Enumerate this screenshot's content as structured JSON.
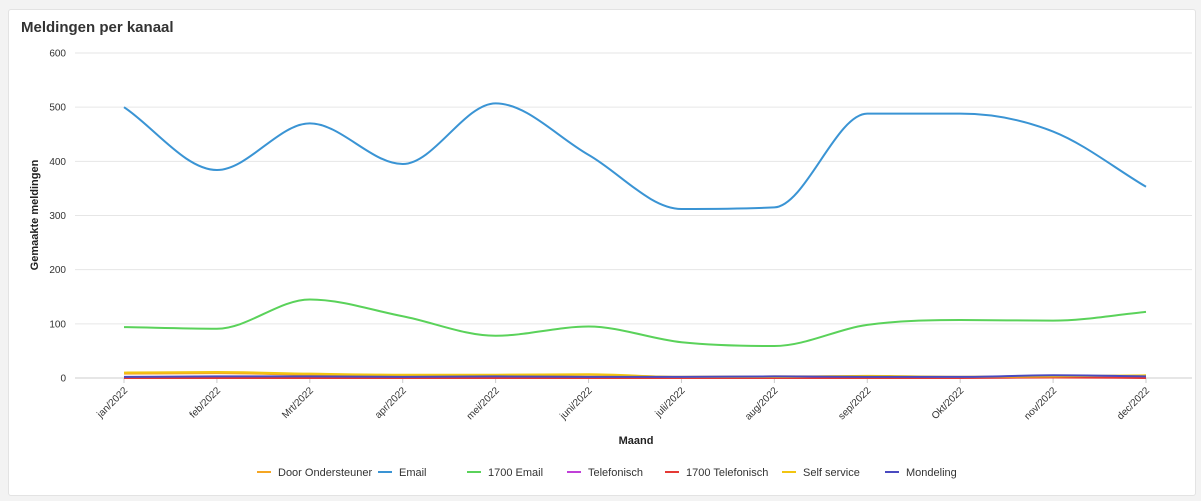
{
  "chart_data": {
    "type": "line",
    "title": "Meldingen per kanaal",
    "xlabel": "Maand",
    "ylabel": "Gemaakte meldingen",
    "ylim": [
      0,
      600
    ],
    "yticks": [
      0,
      100,
      200,
      300,
      400,
      500,
      600
    ],
    "grid": true,
    "legend_position": "bottom",
    "categories": [
      "jan/2022",
      "feb/2022",
      "Mrt/2022",
      "apr/2022",
      "mei/2022",
      "juni/2022",
      "juli/2022",
      "aug/2022",
      "sep/2022",
      "Okt/2022",
      "nov/2022",
      "dec/2022"
    ],
    "series": [
      {
        "name": "Door Ondersteuner",
        "color": "#f5a623",
        "values": [
          8,
          9,
          6,
          5,
          4,
          6,
          2,
          3,
          3,
          2,
          3,
          4
        ]
      },
      {
        "name": "Email",
        "color": "#3a94d4",
        "values": [
          500,
          384,
          470,
          395,
          507,
          412,
          312,
          315,
          488,
          488,
          455,
          353
        ]
      },
      {
        "name": "1700 Email",
        "color": "#5ad25a",
        "values": [
          94,
          91,
          145,
          114,
          78,
          95,
          66,
          59,
          98,
          107,
          106,
          122
        ]
      },
      {
        "name": "Telefonisch",
        "color": "#c040d8",
        "values": [
          1,
          1,
          1,
          1,
          1,
          1,
          1,
          1,
          1,
          1,
          2,
          1
        ]
      },
      {
        "name": "1700 Telefonisch",
        "color": "#e53935",
        "values": [
          0,
          0,
          0,
          0,
          0,
          0,
          0,
          0,
          0,
          0,
          1,
          0
        ]
      },
      {
        "name": "Self service",
        "color": "#f2c511",
        "values": [
          10,
          11,
          8,
          6,
          6,
          7,
          2,
          2,
          4,
          2,
          3,
          5
        ]
      },
      {
        "name": "Mondeling",
        "color": "#4a4ac0",
        "values": [
          2,
          3,
          3,
          2,
          3,
          2,
          2,
          3,
          2,
          2,
          5,
          3
        ]
      }
    ]
  }
}
